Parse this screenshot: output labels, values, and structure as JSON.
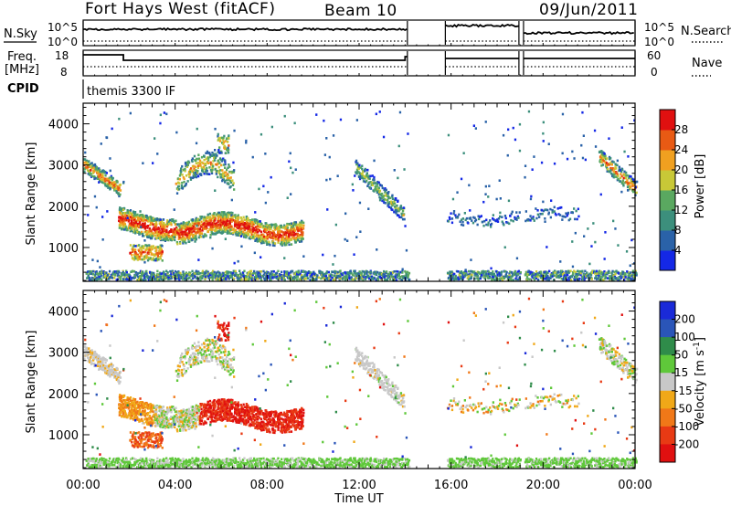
{
  "header": {
    "station": "Fort Hays West (fitACF)",
    "beam": "Beam 10",
    "date": "09/Jun/2011"
  },
  "param_labels": {
    "nsky": "N.Sky",
    "freq_line1": "Freq.",
    "freq_line2": "[MHz]",
    "cpid": "CPID",
    "nsearch": "N.Search",
    "nave": "Nave"
  },
  "param_ticks": {
    "nsky_left": [
      "10^5",
      "10^0"
    ],
    "nsky_right": [
      "10^5",
      "10^0"
    ],
    "freq_left": [
      "18",
      "8"
    ],
    "nave_right": [
      "60",
      "0"
    ]
  },
  "cpid_text": "themis 3300 IF",
  "chart_data": [
    {
      "type": "heatmap",
      "panel": "power",
      "ylabel": "Slant Range [km]",
      "yticks": [
        1000,
        2000,
        3000,
        4000
      ],
      "ylim": [
        180,
        4500
      ],
      "colorbar": {
        "label": "Power [dB]",
        "ticks": [
          4,
          8,
          12,
          16,
          20,
          24,
          28
        ],
        "range": [
          0,
          32
        ],
        "colors": [
          "#1428e6",
          "#2a62a8",
          "#3c8f7c",
          "#5aa860",
          "#c8c837",
          "#f0a020",
          "#e85a14",
          "#e01010"
        ]
      },
      "data_gaps_ut_hours": [
        [
          14.1,
          15.75
        ],
        [
          18.95,
          19.15
        ]
      ],
      "echo_regions": [
        {
          "t_start": 1.5,
          "t_end": 9.5,
          "range_start": 1200,
          "range_end": 2000,
          "level_db": "high"
        },
        {
          "t_start": 0.0,
          "t_end": 1.5,
          "range_start": 2300,
          "range_end": 3300,
          "level_db": "medium"
        },
        {
          "t_start": 4.0,
          "t_end": 6.5,
          "range_start": 2000,
          "range_end": 3700,
          "level_db": "medium"
        },
        {
          "t_start": 11.8,
          "t_end": 13.9,
          "range_start": 1500,
          "range_end": 3000,
          "level_db": "low"
        },
        {
          "t_start": 22.5,
          "t_end": 24.0,
          "range_start": 2200,
          "range_end": 3400,
          "level_db": "medium"
        }
      ]
    },
    {
      "type": "heatmap",
      "panel": "velocity",
      "ylabel": "Slant Range [km]",
      "xlabel": "Time UT",
      "xticks": [
        "00:00",
        "04:00",
        "08:00",
        "12:00",
        "16:00",
        "20:00",
        "00:00"
      ],
      "xlim": [
        0,
        24
      ],
      "yticks": [
        1000,
        2000,
        3000,
        4000
      ],
      "ylim": [
        180,
        4500
      ],
      "colorbar": {
        "label": "Velocity [m s-1]",
        "label_main": "Velocity [m s",
        "label_sup": "-1",
        "label_end": "]",
        "ticks": [
          200,
          100,
          50,
          15,
          -15,
          -50,
          -100,
          -200
        ],
        "colors": [
          "#1a2ad8",
          "#2a55b8",
          "#2f8c4a",
          "#5fc83a",
          "#c8c8c8",
          "#f0a818",
          "#f07818",
          "#e83a14",
          "#e01010"
        ]
      },
      "echo_regions": [
        {
          "t_start": 0.0,
          "t_end": 4.0,
          "range_start": 1200,
          "range_end": 3000,
          "velocity": "near-zero (gray)"
        },
        {
          "t_start": 5.0,
          "t_end": 9.5,
          "range_start": 1300,
          "range_end": 2100,
          "velocity": "-100 to -200 (red)"
        },
        {
          "t_start": 2.0,
          "t_end": 3.5,
          "range_start": 700,
          "range_end": 1100,
          "velocity": "-50 to -100 (orange)"
        },
        {
          "t_start": 11.8,
          "t_end": 13.9,
          "range_start": 1400,
          "range_end": 2900,
          "velocity": "near-zero (gray)"
        },
        {
          "t_start": 0.0,
          "t_end": 24.0,
          "range_start": 200,
          "range_end": 400,
          "velocity": "+15 to +50 (green, ground scatter)"
        }
      ]
    }
  ]
}
